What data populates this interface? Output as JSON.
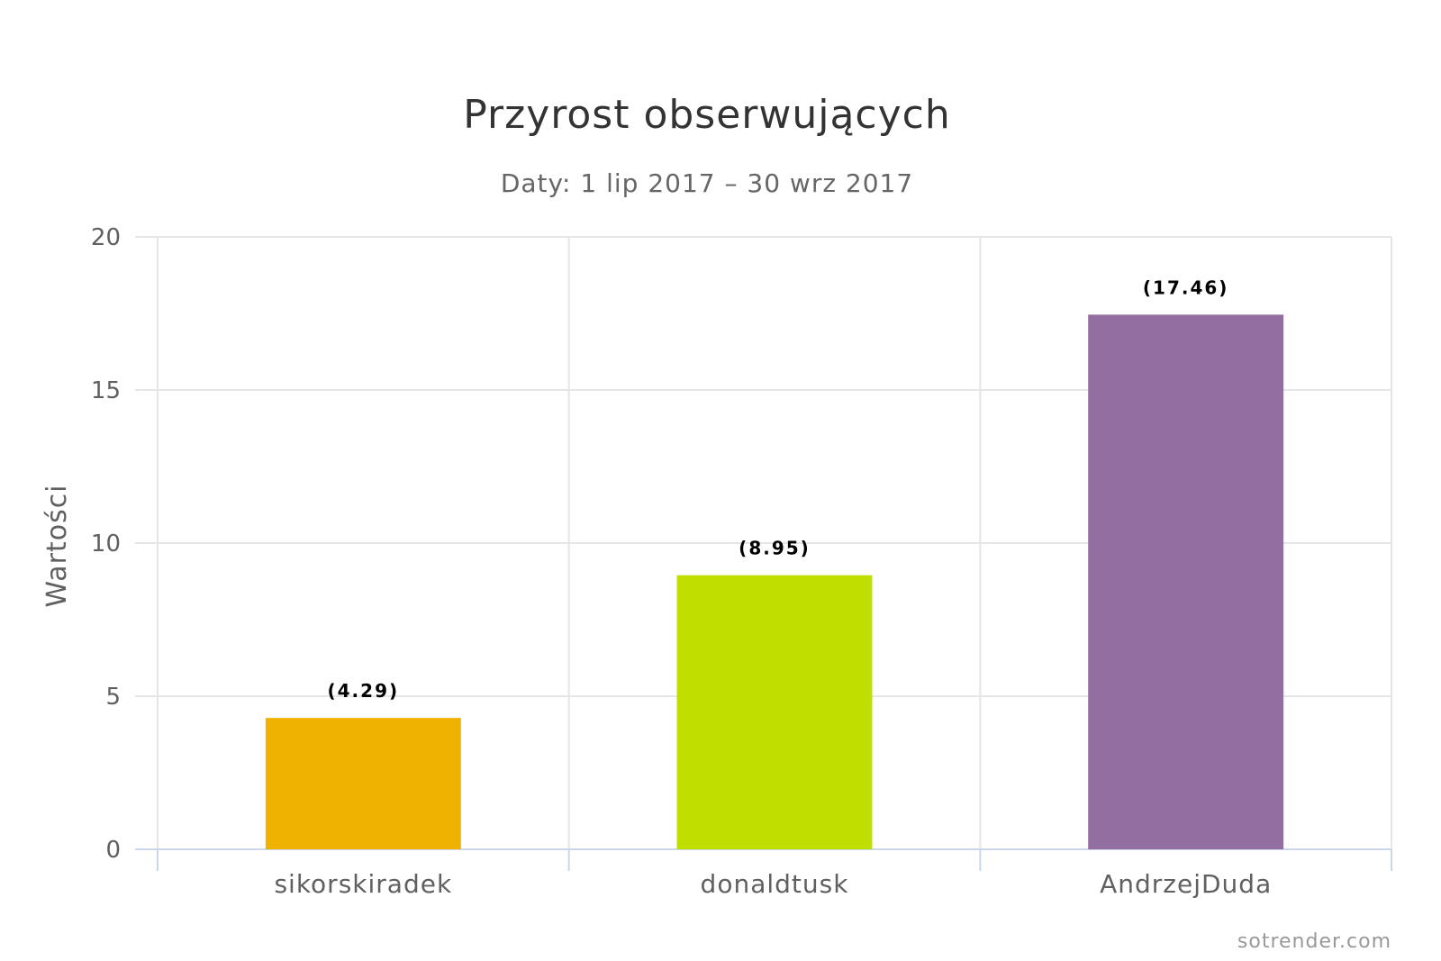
{
  "chart_data": {
    "type": "bar",
    "title": "Przyrost obserwujących",
    "subtitle": "Daty: 1 lip 2017 – 30 wrz 2017",
    "xlabel": "",
    "ylabel": "Wartości",
    "ylim": [
      0,
      20
    ],
    "yticks": [
      "0",
      "5",
      "10",
      "15",
      "20"
    ],
    "categories": [
      "sikorskiradek",
      "donaldtusk",
      "AndrzejDuda"
    ],
    "values": [
      4.29,
      8.95,
      17.46
    ],
    "data_labels": [
      "(4.29)",
      "(8.95)",
      "(17.46)"
    ],
    "colors": [
      "#efb200",
      "#c0df00",
      "#926ea1"
    ],
    "grid": true,
    "legend": "none",
    "credit": "sotrender.com"
  }
}
